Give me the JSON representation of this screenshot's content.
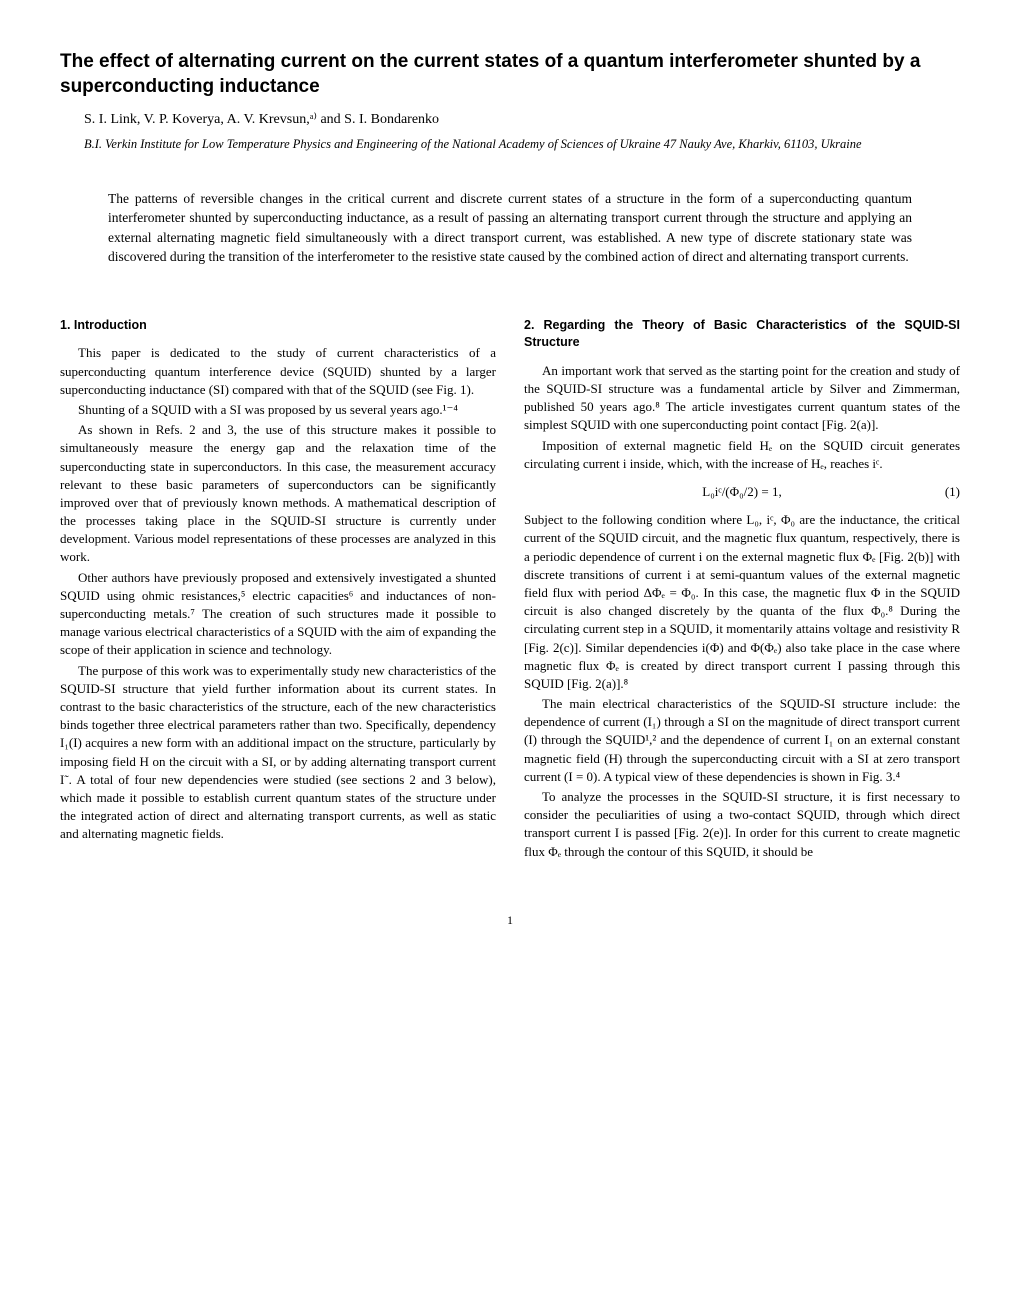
{
  "title": "The effect of alternating current on the current states of a quantum interferometer shunted by a superconducting inductance",
  "authors": "S. I. Link, V. P. Koverya, A. V. Krevsun,ᵃ⁾ and S. I. Bondarenko",
  "affiliation": "B.I. Verkin Institute for Low Temperature Physics and Engineering of the National Academy of Sciences of Ukraine 47 Nauky Ave, Kharkiv, 61103, Ukraine",
  "abstract": "The patterns of reversible changes in the critical current and discrete current states of a structure in the form of a superconducting quantum interferometer shunted by superconducting inductance, as a result of passing an alternating transport current through the structure and applying an external alternating magnetic field simultaneously with a direct transport current, was established. A new type of discrete stationary state was discovered during the transition of the interferometer to the resistive state caused by the combined action of direct and alternating transport currents.",
  "left": {
    "heading": "1. Introduction",
    "p1": "This paper is dedicated to the study of current characteristics of a superconducting quantum interference device (SQUID) shunted by a larger superconducting inductance (SI) compared with that of the SQUID (see Fig. 1).",
    "p2": "Shunting of a SQUID with a SI was proposed by us several years ago.¹⁻⁴",
    "p3": "As shown in Refs. 2 and 3, the use of this structure makes it possible to simultaneously measure the energy gap and the relaxation time of the superconducting state in superconductors. In this case, the measurement accuracy relevant to these basic parameters of superconductors can be significantly improved over that of previously known methods. A mathematical description of the processes taking place in the SQUID-SI structure is currently under development. Various model representations of these processes are analyzed in this work.",
    "p4": "Other authors have previously proposed and extensively investigated a shunted SQUID using ohmic resistances,⁵ electric capacities⁶ and inductances of non-superconducting metals.⁷ The creation of such structures made it possible to manage various electrical characteristics of a SQUID with the aim of expanding the scope of their application in science and technology.",
    "p5": "The purpose of this work was to experimentally study new characteristics of the SQUID-SI structure that yield further information about its current states. In contrast to the basic characteristics of the structure, each of the new characteristics binds together three electrical parameters rather than two. Specifically, dependency I₁(I) acquires a new form with an additional impact on the structure, particularly by imposing field H on the circuit with a SI, or by adding alternating transport current I˜. A total of four new dependencies were studied (see sections 2 and 3 below), which made it possible to establish current quantum states of the structure under the integrated action of direct and alternating transport currents, as well as static and alternating magnetic fields."
  },
  "right": {
    "heading": "2. Regarding the Theory of Basic Characteristics of the SQUID-SI Structure",
    "p1": "An important work that served as the starting point for the creation and study of the SQUID-SI structure was a fundamental article by Silver and Zimmerman, published 50 years ago.⁸ The article investigates current quantum states of the simplest SQUID with one superconducting point contact [Fig. 2(a)].",
    "p2": "Imposition of external magnetic field Hₑ on the SQUID circuit generates circulating current i inside, which, with the increase of Hₑ, reaches iᶜ.",
    "eq1": "L₀iᶜ/(Φ₀/2) = 1,",
    "eq1num": "(1)",
    "p3": "Subject to the following condition where L₀, iᶜ, Φ₀ are the inductance, the critical current of the SQUID circuit, and the magnetic flux quantum, respectively, there is a periodic dependence of current i on the external magnetic flux Φₑ [Fig. 2(b)] with discrete transitions of current i at semi-quantum values of the external magnetic field flux with period ΔΦₑ = Φ₀. In this case, the magnetic flux Φ in the SQUID circuit is also changed discretely by the quanta of the flux Φ₀.⁸ During the circulating current step in a SQUID, it momentarily attains voltage and resistivity R [Fig. 2(c)]. Similar dependencies i(Φ) and Φ(Φₑ) also take place in the case where magnetic flux Φₑ is created by direct transport current I passing through this SQUID [Fig. 2(a)].⁸",
    "p4": "The main electrical characteristics of the SQUID-SI structure include: the dependence of current (I₁) through a SI on the magnitude of direct transport current (I) through the SQUID¹,² and the dependence of current I₁ on an external constant magnetic field (H) through the superconducting circuit with a SI at zero transport current (I = 0). A typical view of these dependencies is shown in Fig. 3.⁴",
    "p5": "To analyze the processes in the SQUID-SI structure, it is first necessary to consider the peculiarities of using a two-contact SQUID, through which direct transport current I is passed [Fig. 2(e)]. In order for this current to create magnetic flux Φₑ through the contour of this SQUID, it should be"
  },
  "pagenum": "1"
}
